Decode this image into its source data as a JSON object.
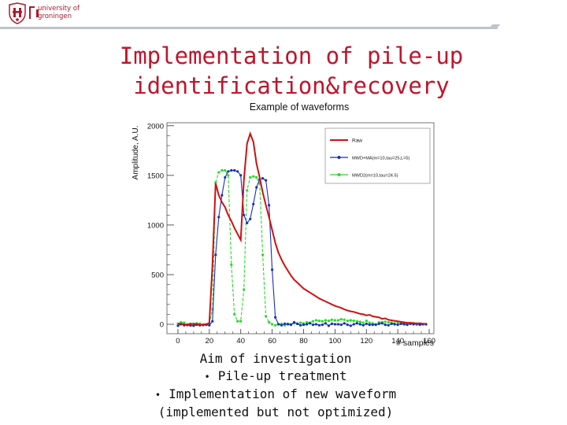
{
  "header": {
    "logo_line1": "university of",
    "logo_line2": "groningen",
    "accent": "#b0182d"
  },
  "slide": {
    "title_line1": "Implementation of pile-up",
    "title_line2": "identification&recovery",
    "bullets": {
      "heading": "Aim of investigation",
      "item1": "Pile-up treatment",
      "item2": "Implementation of new waveform",
      "item2_cont": "(implemented but not optimized)"
    },
    "bullet_glyph": "•"
  },
  "chart_data": {
    "type": "line",
    "title": "Example of waveforms",
    "xlabel": "# samples",
    "ylabel": "Amplitude, A.U.",
    "xlim": [
      -7,
      163
    ],
    "ylim": [
      -95,
      2030
    ],
    "xticks": [
      0,
      20,
      40,
      60,
      80,
      100,
      120,
      140,
      160
    ],
    "yticks": [
      0,
      500,
      1000,
      1500,
      2000
    ],
    "grid": false,
    "legend_position": "top-right",
    "series": [
      {
        "name": "Raw",
        "color": "#d01010",
        "style": "line",
        "points": [
          [
            0,
            8
          ],
          [
            5,
            -3
          ],
          [
            10,
            6
          ],
          [
            15,
            -5
          ],
          [
            18,
            2
          ],
          [
            20,
            12
          ],
          [
            22,
            600
          ],
          [
            24,
            1420
          ],
          [
            26,
            1300
          ],
          [
            28,
            1230
          ],
          [
            30,
            1180
          ],
          [
            32,
            1100
          ],
          [
            34,
            1040
          ],
          [
            36,
            970
          ],
          [
            38,
            910
          ],
          [
            40,
            850
          ],
          [
            42,
            1450
          ],
          [
            44,
            1820
          ],
          [
            46,
            1920
          ],
          [
            48,
            1840
          ],
          [
            50,
            1620
          ],
          [
            52,
            1480
          ],
          [
            54,
            1330
          ],
          [
            56,
            1200
          ],
          [
            58,
            1080
          ],
          [
            60,
            950
          ],
          [
            62,
            820
          ],
          [
            64,
            720
          ],
          [
            66,
            650
          ],
          [
            68,
            590
          ],
          [
            70,
            540
          ],
          [
            72,
            490
          ],
          [
            74,
            450
          ],
          [
            76,
            420
          ],
          [
            78,
            390
          ],
          [
            80,
            360
          ],
          [
            82,
            340
          ],
          [
            84,
            320
          ],
          [
            86,
            300
          ],
          [
            88,
            280
          ],
          [
            90,
            260
          ],
          [
            92,
            245
          ],
          [
            94,
            230
          ],
          [
            96,
            215
          ],
          [
            98,
            200
          ],
          [
            100,
            185
          ],
          [
            102,
            175
          ],
          [
            104,
            165
          ],
          [
            106,
            150
          ],
          [
            108,
            140
          ],
          [
            110,
            130
          ],
          [
            112,
            125
          ],
          [
            114,
            115
          ],
          [
            116,
            105
          ],
          [
            118,
            100
          ],
          [
            120,
            90
          ],
          [
            122,
            95
          ],
          [
            124,
            80
          ],
          [
            126,
            75
          ],
          [
            128,
            70
          ],
          [
            130,
            55
          ],
          [
            132,
            60
          ],
          [
            134,
            45
          ],
          [
            136,
            40
          ],
          [
            138,
            35
          ],
          [
            140,
            30
          ],
          [
            142,
            25
          ],
          [
            144,
            20
          ],
          [
            146,
            15
          ],
          [
            148,
            15
          ],
          [
            150,
            12
          ],
          [
            152,
            8
          ],
          [
            154,
            10
          ],
          [
            156,
            5
          ],
          [
            158,
            5
          ]
        ]
      },
      {
        "name": "MWD+MA(m=10,tau=25,L=5)",
        "color": "#1830b8",
        "style": "line+markers",
        "points": [
          [
            0,
            -15
          ],
          [
            2,
            0
          ],
          [
            4,
            -10
          ],
          [
            6,
            -8
          ],
          [
            8,
            -12
          ],
          [
            10,
            -15
          ],
          [
            12,
            -5
          ],
          [
            14,
            -10
          ],
          [
            16,
            -8
          ],
          [
            18,
            -5
          ],
          [
            20,
            -10
          ],
          [
            22,
            30
          ],
          [
            24,
            700
          ],
          [
            26,
            1080
          ],
          [
            28,
            1300
          ],
          [
            30,
            1480
          ],
          [
            32,
            1540
          ],
          [
            34,
            1550
          ],
          [
            36,
            1550
          ],
          [
            38,
            1540
          ],
          [
            40,
            1500
          ],
          [
            42,
            1100
          ],
          [
            44,
            1020
          ],
          [
            46,
            1060
          ],
          [
            48,
            1210
          ],
          [
            50,
            1380
          ],
          [
            52,
            1460
          ],
          [
            54,
            1470
          ],
          [
            56,
            1450
          ],
          [
            58,
            1200
          ],
          [
            60,
            550
          ],
          [
            62,
            70
          ],
          [
            64,
            0
          ],
          [
            66,
            -10
          ],
          [
            68,
            5
          ],
          [
            70,
            0
          ],
          [
            72,
            -5
          ],
          [
            74,
            20
          ],
          [
            76,
            5
          ],
          [
            78,
            -10
          ],
          [
            80,
            -5
          ],
          [
            82,
            0
          ],
          [
            84,
            10
          ],
          [
            86,
            -5
          ],
          [
            88,
            0
          ],
          [
            90,
            -10
          ],
          [
            92,
            -5
          ],
          [
            94,
            10
          ],
          [
            96,
            -15
          ],
          [
            98,
            5
          ],
          [
            100,
            0
          ],
          [
            102,
            0
          ],
          [
            104,
            -5
          ],
          [
            106,
            10
          ],
          [
            108,
            -5
          ],
          [
            110,
            -15
          ],
          [
            112,
            0
          ],
          [
            114,
            10
          ],
          [
            116,
            0
          ],
          [
            118,
            -10
          ],
          [
            120,
            5
          ],
          [
            122,
            -5
          ],
          [
            124,
            -5
          ],
          [
            126,
            -5
          ],
          [
            128,
            5
          ],
          [
            130,
            10
          ],
          [
            132,
            -5
          ],
          [
            134,
            -10
          ],
          [
            136,
            5
          ],
          [
            138,
            0
          ],
          [
            140,
            -5
          ],
          [
            142,
            5
          ],
          [
            144,
            0
          ],
          [
            146,
            -5
          ],
          [
            148,
            5
          ],
          [
            150,
            0
          ],
          [
            152,
            5
          ],
          [
            154,
            -5
          ],
          [
            156,
            0
          ],
          [
            158,
            0
          ]
        ]
      },
      {
        "name": "MWD2(m=10,tau=24.5)",
        "color": "#2bd82b",
        "style": "line+markers",
        "points": [
          [
            0,
            5
          ],
          [
            2,
            20
          ],
          [
            4,
            15
          ],
          [
            6,
            -5
          ],
          [
            8,
            5
          ],
          [
            10,
            -5
          ],
          [
            12,
            10
          ],
          [
            14,
            5
          ],
          [
            16,
            -5
          ],
          [
            18,
            -5
          ],
          [
            20,
            5
          ],
          [
            22,
            150
          ],
          [
            24,
            1430
          ],
          [
            26,
            1530
          ],
          [
            28,
            1550
          ],
          [
            30,
            1550
          ],
          [
            32,
            1500
          ],
          [
            34,
            600
          ],
          [
            36,
            100
          ],
          [
            38,
            30
          ],
          [
            40,
            30
          ],
          [
            42,
            350
          ],
          [
            44,
            1350
          ],
          [
            46,
            1480
          ],
          [
            48,
            1490
          ],
          [
            50,
            1480
          ],
          [
            52,
            1420
          ],
          [
            54,
            700
          ],
          [
            56,
            80
          ],
          [
            58,
            20
          ],
          [
            60,
            0
          ],
          [
            62,
            -10
          ],
          [
            64,
            0
          ],
          [
            66,
            5
          ],
          [
            68,
            -10
          ],
          [
            70,
            5
          ],
          [
            72,
            0
          ],
          [
            74,
            10
          ],
          [
            76,
            5
          ],
          [
            78,
            15
          ],
          [
            80,
            10
          ],
          [
            82,
            20
          ],
          [
            84,
            15
          ],
          [
            86,
            30
          ],
          [
            88,
            40
          ],
          [
            90,
            35
          ],
          [
            92,
            30
          ],
          [
            94,
            40
          ],
          [
            96,
            35
          ],
          [
            98,
            45
          ],
          [
            100,
            40
          ],
          [
            102,
            40
          ],
          [
            104,
            50
          ],
          [
            106,
            45
          ],
          [
            108,
            35
          ],
          [
            110,
            40
          ],
          [
            112,
            35
          ],
          [
            114,
            30
          ],
          [
            116,
            25
          ],
          [
            118,
            15
          ],
          [
            120,
            35
          ],
          [
            122,
            15
          ],
          [
            124,
            10
          ],
          [
            126,
            0
          ],
          [
            128,
            20
          ],
          [
            130,
            20
          ],
          [
            132,
            25
          ],
          [
            134,
            20
          ],
          [
            136,
            15
          ],
          [
            138,
            10
          ],
          [
            140,
            20
          ],
          [
            142,
            5
          ],
          [
            144,
            15
          ],
          [
            146,
            0
          ],
          [
            148,
            5
          ],
          [
            150,
            10
          ],
          [
            152,
            -5
          ],
          [
            154,
            5
          ],
          [
            156,
            0
          ],
          [
            158,
            0
          ]
        ]
      }
    ]
  }
}
